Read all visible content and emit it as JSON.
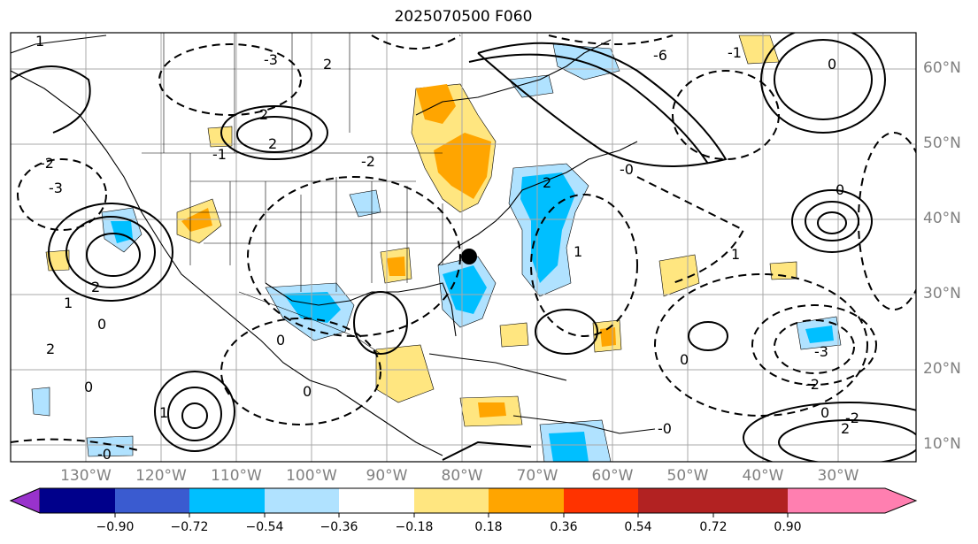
{
  "title": "2025070500 F060",
  "map": {
    "lat_labels": [
      "60°N",
      "50°N",
      "40°N",
      "30°N",
      "20°N",
      "10°N"
    ],
    "lon_labels": [
      "130°W",
      "120°W",
      "110°W",
      "100°W",
      "90°W",
      "80°W",
      "70°W",
      "60°W",
      "50°W",
      "40°W",
      "30°W"
    ],
    "contour_labels": [
      "1",
      "-1",
      "-3",
      "2",
      "2",
      "-2",
      "-3",
      "2",
      "1",
      "0",
      "0",
      "1",
      "2",
      "0",
      "-0",
      "0",
      "1",
      "-2",
      "-3",
      "0",
      "0",
      "-2",
      "2",
      "2",
      "-0",
      "-0",
      "1",
      "0",
      "-6",
      "0",
      "-1",
      "-2",
      "2"
    ],
    "marker": "station-dot"
  },
  "colorbar": {
    "ticks": [
      "−0.90",
      "−0.72",
      "−0.54",
      "−0.36",
      "−0.18",
      "0.18",
      "0.36",
      "0.54",
      "0.72",
      "0.90"
    ],
    "colors": [
      "#9932cc",
      "#00008b",
      "#3a5bd0",
      "#00bfff",
      "#b0e2ff",
      "#ffffff",
      "#ffe680",
      "#ffa500",
      "#ff3300",
      "#b22222",
      "#ff7fb0"
    ]
  }
}
